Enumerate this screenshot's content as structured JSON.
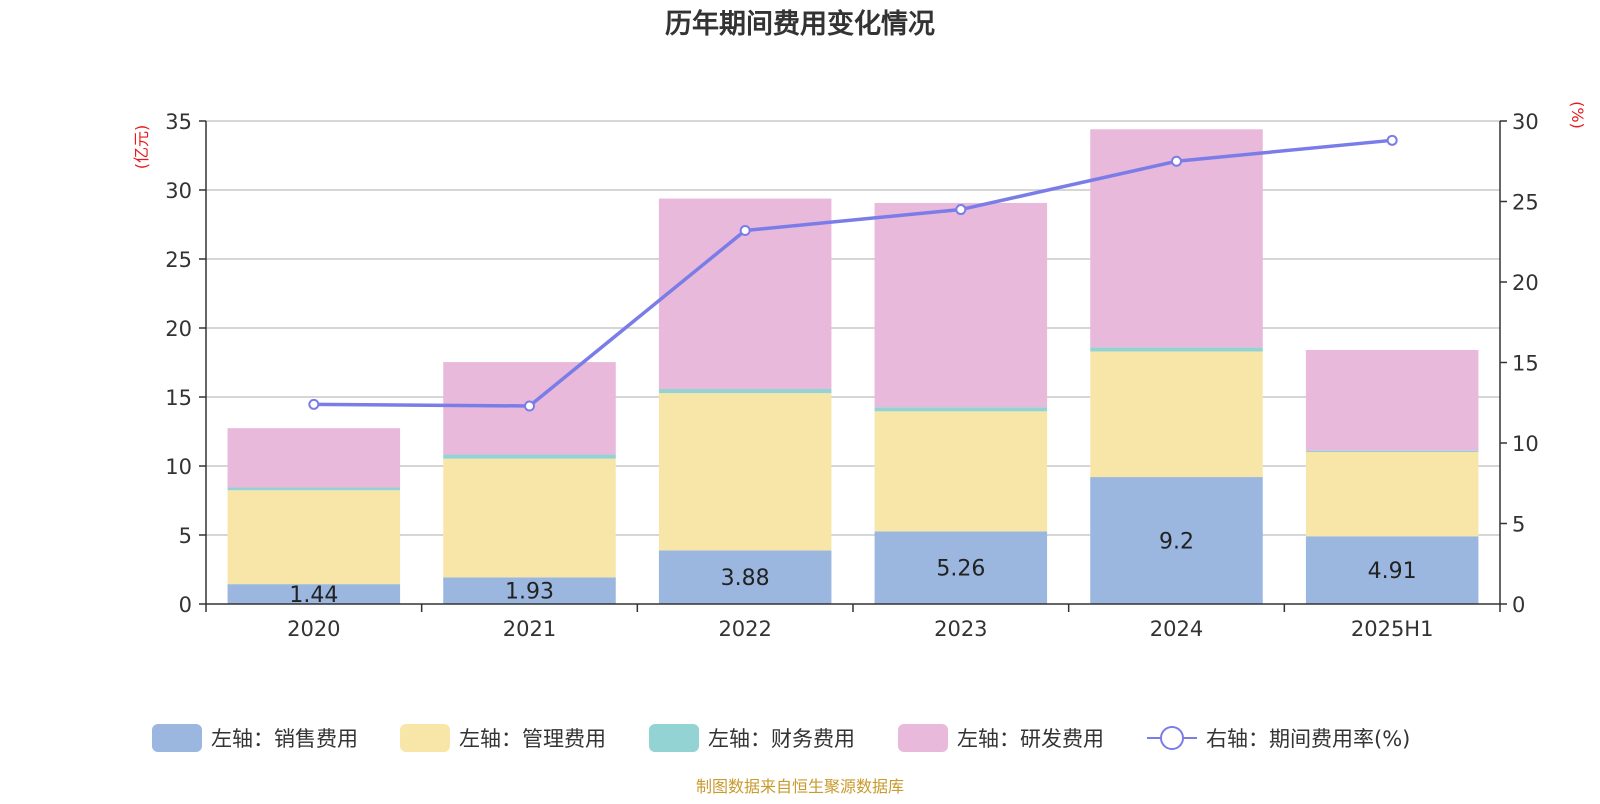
{
  "chart_data": {
    "type": "bar",
    "title": "历年期间费用变化情况",
    "categories": [
      "2020",
      "2021",
      "2022",
      "2023",
      "2024",
      "2025H1"
    ],
    "left_axis": {
      "unit_label": "(亿元)",
      "ylim": [
        0,
        35
      ],
      "ticks": [
        0,
        5,
        10,
        15,
        20,
        25,
        30,
        35
      ]
    },
    "right_axis": {
      "unit_label": "(%)",
      "ylim": [
        0,
        30
      ],
      "ticks": [
        0,
        5,
        10,
        15,
        20,
        25,
        30
      ]
    },
    "series": [
      {
        "name": "左轴：销售费用",
        "kind": "bar",
        "axis": "left",
        "color": "#9bb7e0",
        "values": [
          1.44,
          1.93,
          3.88,
          5.26,
          9.2,
          4.91
        ],
        "data_labels": [
          "1.44",
          "1.93",
          "3.88",
          "5.26",
          "9.2",
          "4.91"
        ]
      },
      {
        "name": "左轴：管理费用",
        "kind": "bar",
        "axis": "left",
        "color": "#f8e6a8",
        "values": [
          6.8,
          8.6,
          11.4,
          8.7,
          9.1,
          6.1
        ]
      },
      {
        "name": "左轴：财务费用",
        "kind": "bar",
        "axis": "left",
        "color": "#94d3d3",
        "values": [
          0.2,
          0.3,
          0.3,
          0.3,
          0.3,
          0.1
        ]
      },
      {
        "name": "左轴：研发费用",
        "kind": "bar",
        "axis": "left",
        "color": "#e8b9da",
        "values": [
          4.3,
          6.7,
          13.8,
          14.8,
          15.8,
          7.3
        ]
      },
      {
        "name": "右轴：期间费用率(%)",
        "kind": "line",
        "axis": "right",
        "color": "#7a7de8",
        "values": [
          12.4,
          12.3,
          23.2,
          24.5,
          27.5,
          28.8
        ]
      }
    ],
    "grid": true,
    "legend_position": "bottom"
  },
  "source_note": "制图数据来自恒生聚源数据库"
}
